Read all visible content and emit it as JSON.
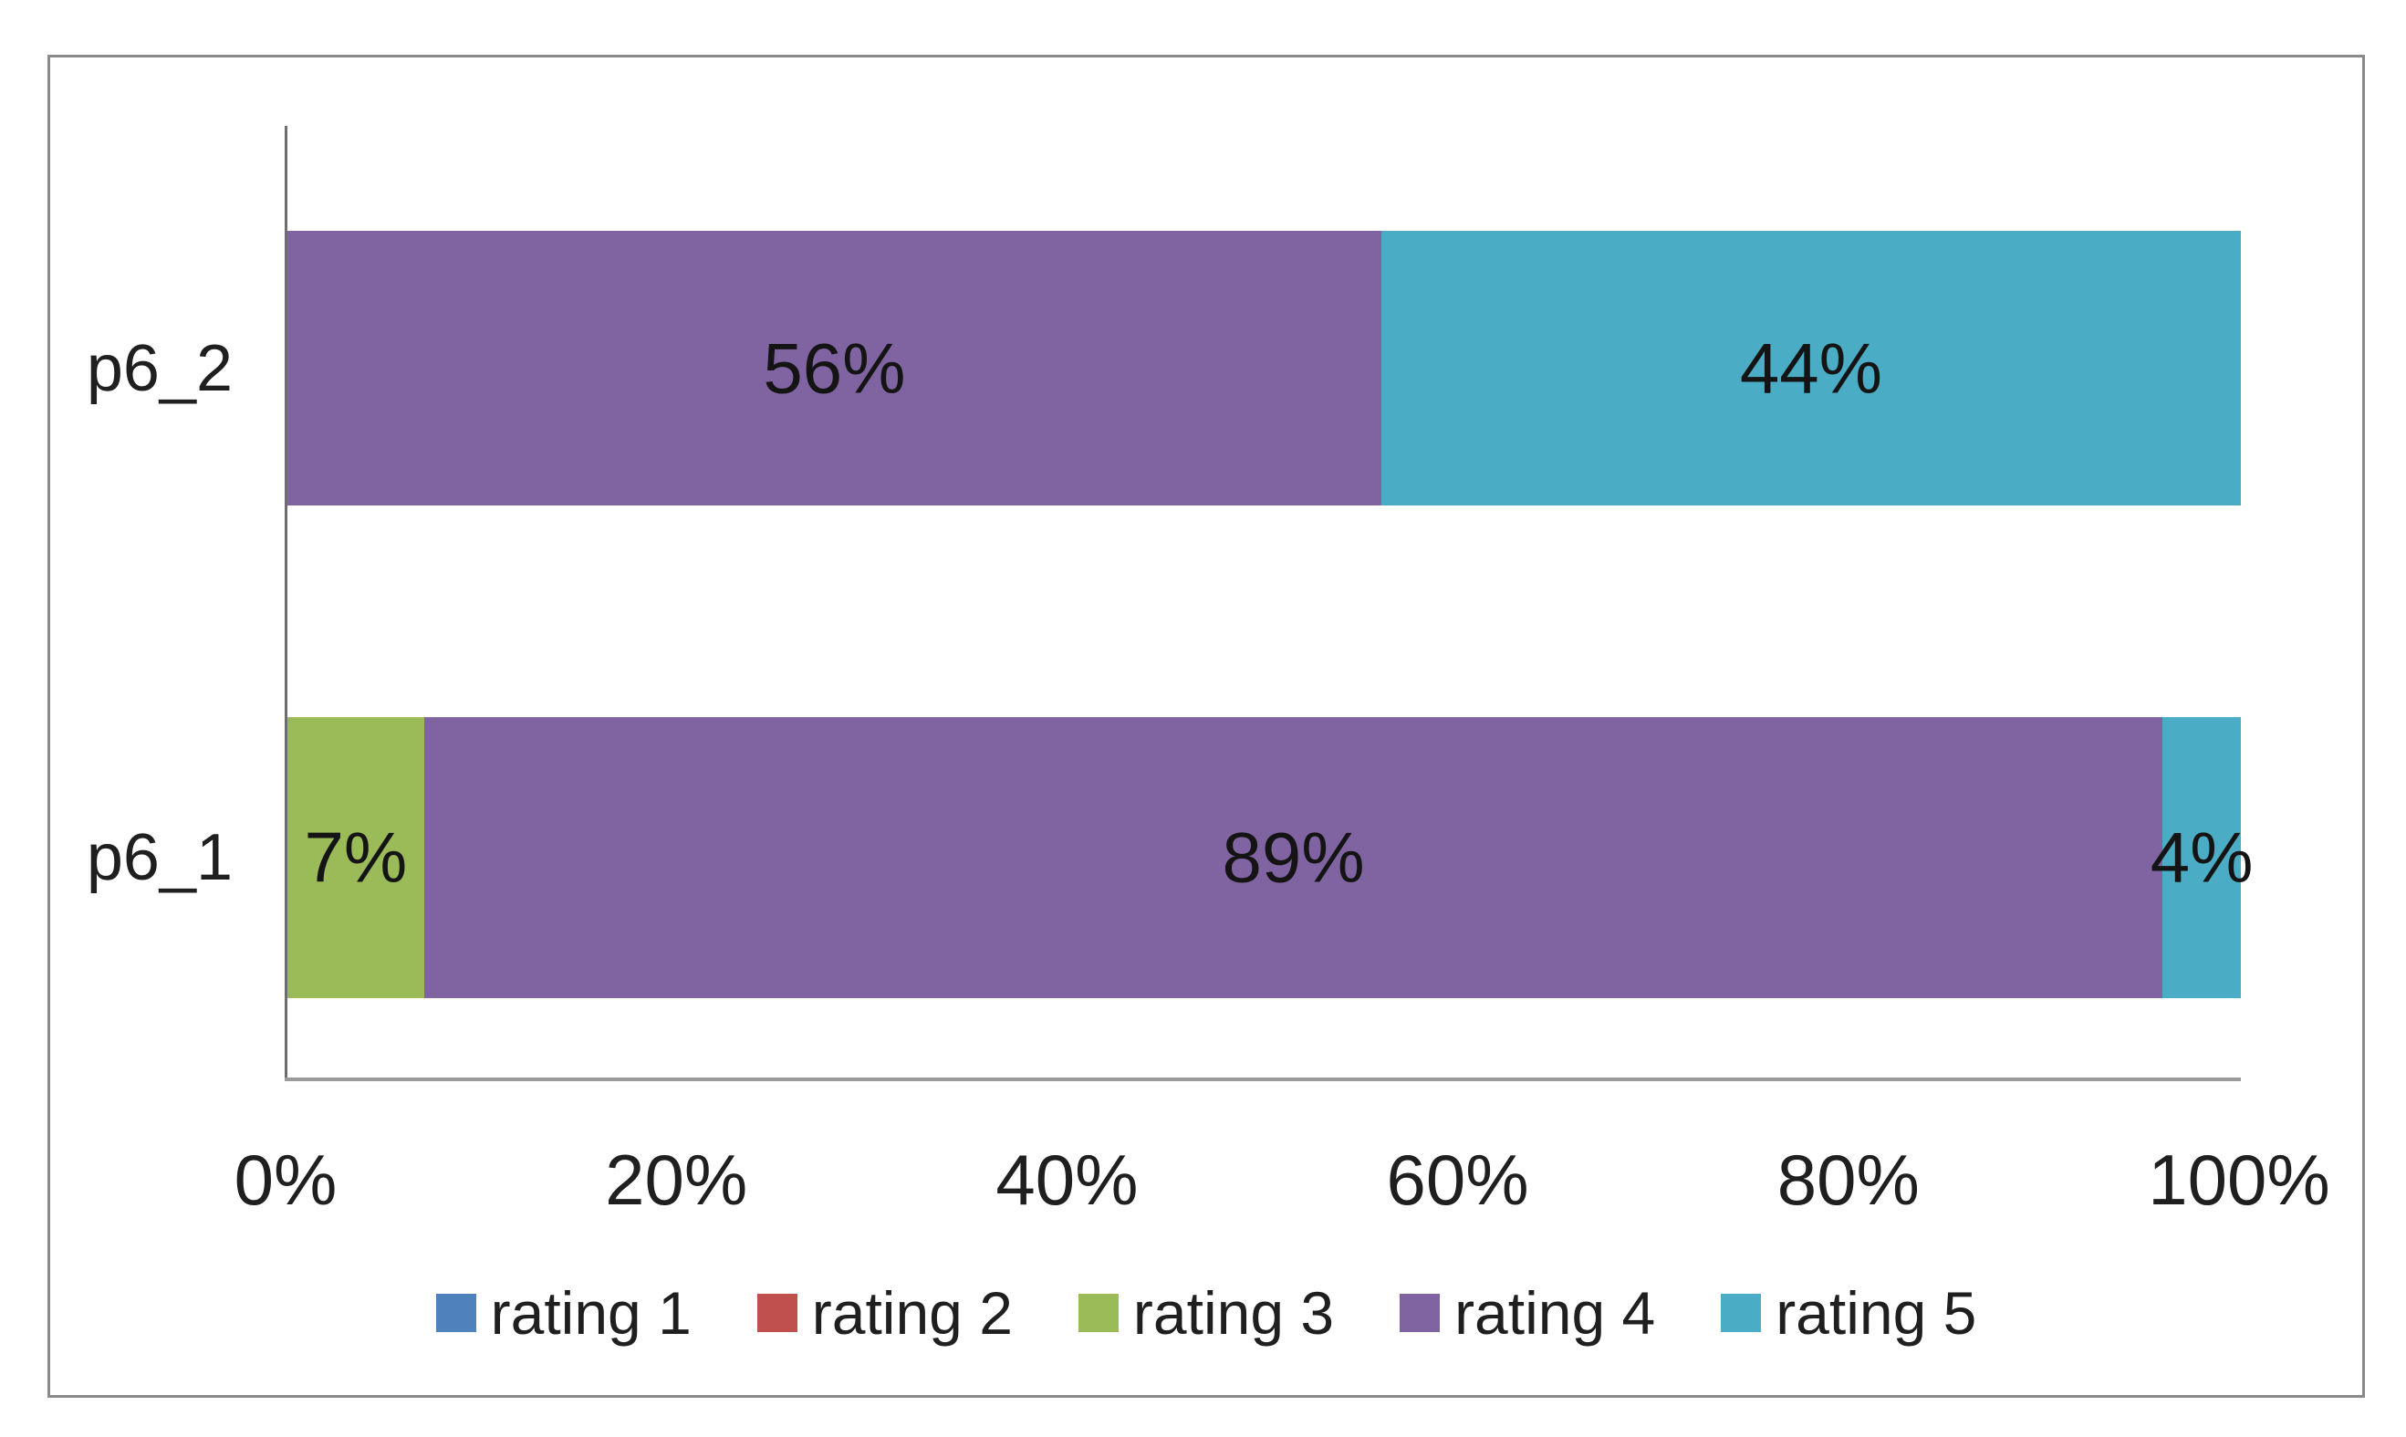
{
  "figure": {
    "background": "#ffffff",
    "border_color": "#8a8a8a",
    "axis_line_color": "#6e6e6e"
  },
  "chart_data": {
    "type": "bar",
    "orientation": "horizontal",
    "stacked": true,
    "title": "",
    "xlabel": "",
    "ylabel": "",
    "xlim": [
      0,
      100
    ],
    "x_ticks": [
      "0%",
      "20%",
      "40%",
      "60%",
      "80%",
      "100%"
    ],
    "grid": false,
    "legend_position": "bottom",
    "categories": [
      "p6_2",
      "p6_1"
    ],
    "series": [
      {
        "name": "rating 1",
        "color": "#4F81BD",
        "values": [
          0,
          0
        ]
      },
      {
        "name": "rating 2",
        "color": "#C0504D",
        "values": [
          0,
          0
        ]
      },
      {
        "name": "rating 3",
        "color": "#9BBB59",
        "values": [
          0,
          7
        ]
      },
      {
        "name": "rating 4",
        "color": "#8064A2",
        "values": [
          56,
          89
        ]
      },
      {
        "name": "rating 5",
        "color": "#4BACC6",
        "values": [
          44,
          4
        ]
      }
    ],
    "rows": [
      {
        "category": "p6_2",
        "segments": [
          {
            "series": "rating 4",
            "pct": 56,
            "label": "56%"
          },
          {
            "series": "rating 5",
            "pct": 44,
            "label": "44%"
          }
        ]
      },
      {
        "category": "p6_1",
        "segments": [
          {
            "series": "rating 3",
            "pct": 7,
            "label": "7%"
          },
          {
            "series": "rating 4",
            "pct": 89,
            "label": "89%"
          },
          {
            "series": "rating 5",
            "pct": 4,
            "label": "4%"
          }
        ]
      }
    ],
    "legend": [
      {
        "label": "rating 1",
        "color": "#4F81BD"
      },
      {
        "label": "rating 2",
        "color": "#C0504D"
      },
      {
        "label": "rating 3",
        "color": "#9BBB59"
      },
      {
        "label": "rating 4",
        "color": "#8064A2"
      },
      {
        "label": "rating 5",
        "color": "#4BACC6"
      }
    ]
  }
}
